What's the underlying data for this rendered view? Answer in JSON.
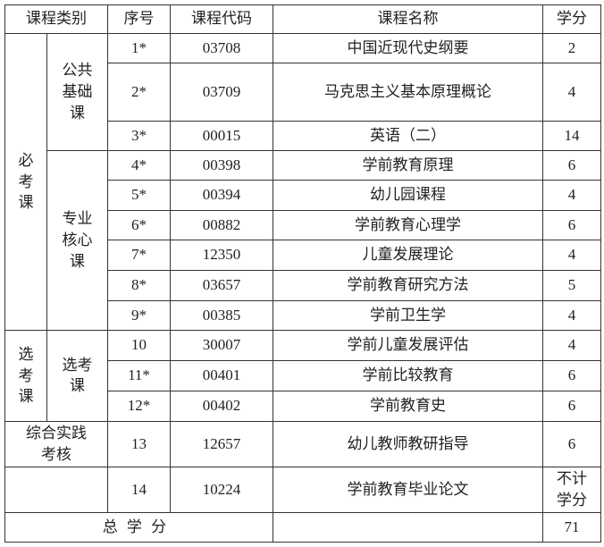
{
  "headers": {
    "category": "课程类别",
    "seq": "序号",
    "code": "课程代码",
    "name": "课程名称",
    "credit": "学分"
  },
  "groups": {
    "required": "必考课",
    "public_basic": "公共基础课",
    "core": "专业核心课",
    "elective": "选考课",
    "elective_sub": "选考课",
    "practice": "综合实践考核"
  },
  "rows": [
    {
      "seq": "1*",
      "code": "03708",
      "name": "中国近现代史纲要",
      "credit": "2"
    },
    {
      "seq": "2*",
      "code": "03709",
      "name": "马克思主义基本原理概论",
      "credit": "4"
    },
    {
      "seq": "3*",
      "code": "00015",
      "name": "英语（二）",
      "credit": "14"
    },
    {
      "seq": "4*",
      "code": "00398",
      "name": "学前教育原理",
      "credit": "6"
    },
    {
      "seq": "5*",
      "code": "00394",
      "name": "幼儿园课程",
      "credit": "4"
    },
    {
      "seq": "6*",
      "code": "00882",
      "name": "学前教育心理学",
      "credit": "6"
    },
    {
      "seq": "7*",
      "code": "12350",
      "name": "儿童发展理论",
      "credit": "4"
    },
    {
      "seq": "8*",
      "code": "03657",
      "name": "学前教育研究方法",
      "credit": "5"
    },
    {
      "seq": "9*",
      "code": "00385",
      "name": "学前卫生学",
      "credit": "4"
    },
    {
      "seq": "10",
      "code": "30007",
      "name": "学前儿童发展评估",
      "credit": "4"
    },
    {
      "seq": "11*",
      "code": "00401",
      "name": "学前比较教育",
      "credit": "6"
    },
    {
      "seq": "12*",
      "code": "00402",
      "name": "学前教育史",
      "credit": "6"
    },
    {
      "seq": "13",
      "code": "12657",
      "name": "幼儿教师教研指导",
      "credit": "6"
    },
    {
      "seq": "14",
      "code": "10224",
      "name": "学前教育毕业论文",
      "credit": "不计学分"
    }
  ],
  "total": {
    "label": "总学分",
    "value": "71"
  }
}
